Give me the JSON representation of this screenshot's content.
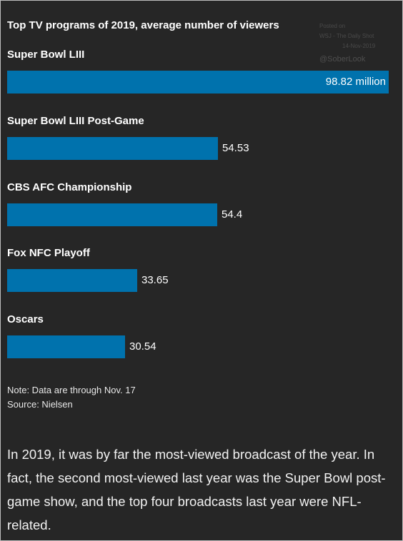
{
  "chart_data": {
    "type": "bar",
    "orientation": "horizontal",
    "title": "Top TV programs of 2019, average number of viewers",
    "categories": [
      "Super Bowl LIII",
      "Super Bowl LIII Post-Game",
      "CBS AFC Championship",
      "Fox NFC Playoff",
      "Oscars"
    ],
    "values": [
      98.82,
      54.53,
      54.4,
      33.65,
      30.54
    ],
    "value_labels": [
      "98.82 million",
      "54.53",
      "54.4",
      "33.65",
      "30.54"
    ],
    "xlim": [
      0,
      98.82
    ],
    "grid": false,
    "legend": "none",
    "bar_color": "#0072ad",
    "background": "#262626"
  },
  "watermark": {
    "line1": "Posted on",
    "line2": "WSJ - The Daily Shot",
    "line3": "14-Nov-2019",
    "handle": "@SoberLook"
  },
  "notes": {
    "note": "Note: Data are through Nov. 17",
    "source": "Source: Nielsen"
  },
  "body_text": "In 2019, it was by far the most-viewed broadcast of the year. In fact, the second most-viewed last year was the Super Bowl post-game show, and the top four broadcasts last year were NFL-related."
}
